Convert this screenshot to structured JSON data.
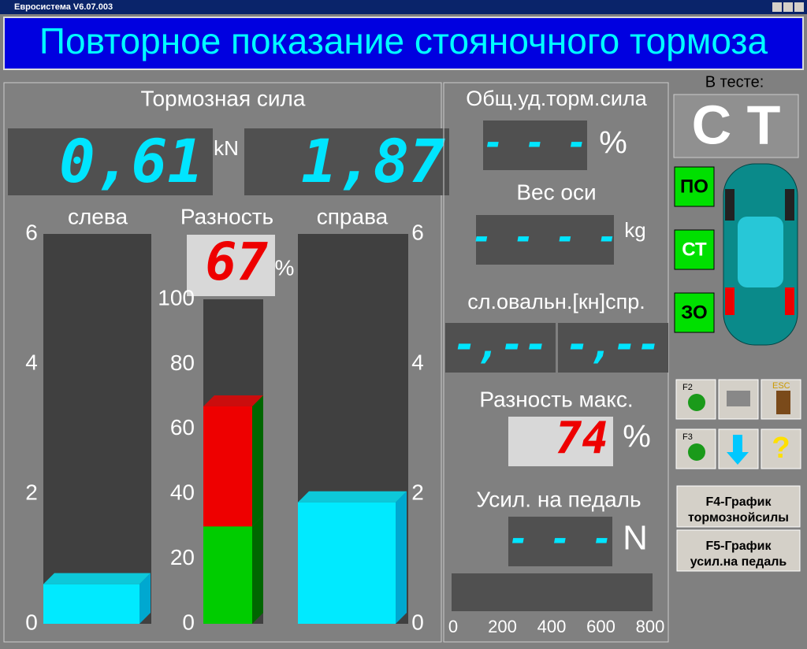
{
  "window": {
    "title": "Евросистема V6.07.003"
  },
  "header": {
    "title": "Повторное показание стояночного тормоза"
  },
  "brake_force": {
    "title": "Тормозная сила",
    "unit": "kN",
    "left": {
      "value": 0.61,
      "label": "0,61"
    },
    "right": {
      "value": 1.87,
      "label": "1,87"
    },
    "left_label": "слева",
    "right_label": "справа",
    "lim": [
      0,
      6
    ],
    "ticks": [
      0,
      2,
      4,
      6
    ]
  },
  "difference": {
    "title": "Разность",
    "value": 67,
    "unit": "%",
    "lim": [
      0,
      100
    ],
    "ticks": [
      0,
      20,
      40,
      60,
      80,
      100
    ],
    "bands": [
      {
        "value": 30,
        "color": "#00cc00"
      },
      {
        "value": 37,
        "color": "#ee0000"
      }
    ]
  },
  "right_panel": {
    "total_label": "Общ.уд.торм.сила",
    "total_value": "- - -",
    "total_unit": "%",
    "axle_label": "Вес оси",
    "axle_value": "- - - -",
    "axle_unit": "kg",
    "ovality_label": "сл.овальн.[кн]спр.",
    "ovality_left": "-,--",
    "ovality_right": "-,--",
    "diff_max_label": "Разность макс.",
    "diff_max_value": 74,
    "diff_max_unit": "%",
    "pedal_label": "Усил. на педаль",
    "pedal_value": "- - -",
    "pedal_unit": "N",
    "pedal_ticks": [
      0,
      200,
      400,
      600,
      800
    ]
  },
  "side": {
    "in_test_label": "В тесте:",
    "mode": "С Т",
    "buttons": [
      "ПО",
      "СТ",
      "ЗО"
    ],
    "f2": "F2",
    "f3": "F3",
    "esc": "ESC",
    "help": "?",
    "f4": [
      "F4-График",
      "тормознойсилы"
    ],
    "f5": [
      "F5-График",
      "усил.на педаль"
    ]
  }
}
